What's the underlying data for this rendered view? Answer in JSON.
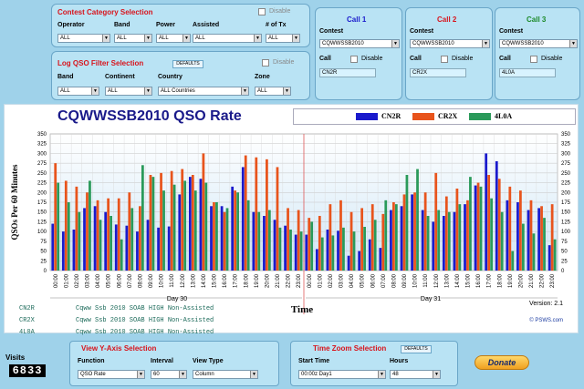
{
  "contest_category": {
    "title": "Contest Category Selection",
    "disable_label": "Disable",
    "labels": [
      "Operator",
      "Band",
      "Power",
      "Assisted",
      "# of Tx"
    ],
    "values": [
      "ALL",
      "ALL",
      "ALL",
      "ALL",
      "ALL"
    ]
  },
  "log_filter": {
    "title": "Log QSO Filter Selection",
    "defaults_label": "DEFAULTS",
    "disable_label": "Disable",
    "labels": [
      "Band",
      "Continent",
      "Country",
      "Zone"
    ],
    "values": [
      "ALL",
      "ALL",
      "ALL Countries",
      "ALL"
    ]
  },
  "calls": [
    {
      "title": "Call 1",
      "color": "#1a1acc",
      "contest_label": "Contest",
      "contest": "CQWWSSB2010",
      "call_label": "Call",
      "disable_label": "Disable",
      "call": "CN2R"
    },
    {
      "title": "Call 2",
      "color": "#d8141c",
      "contest_label": "Contest",
      "contest": "CQWWSSB2010",
      "call_label": "Call",
      "disable_label": "Disable",
      "call": "CR2X"
    },
    {
      "title": "Call 3",
      "color": "#1c8a2a",
      "contest_label": "Contest",
      "contest": "CQWWSSB2010",
      "call_label": "Call",
      "disable_label": "Disable",
      "call": "4L0A"
    }
  ],
  "chart_data": {
    "type": "bar",
    "title": "CQWWSSB2010  QSO Rate",
    "xlabel": "Time",
    "ylabel": "QSOs Per 60 Minutes",
    "ylim": [
      0,
      350
    ],
    "yticks": [
      0,
      25,
      50,
      75,
      100,
      125,
      150,
      175,
      200,
      225,
      250,
      275,
      300,
      325,
      350
    ],
    "grid": true,
    "legend_position": "top-right",
    "categories": [
      "00:00",
      "01:00",
      "02:00",
      "03:00",
      "04:00",
      "05:00",
      "06:00",
      "07:00",
      "08:00",
      "09:00",
      "10:00",
      "11:00",
      "12:00",
      "13:00",
      "14:00",
      "15:00",
      "16:00",
      "17:00",
      "18:00",
      "19:00",
      "20:00",
      "21:00",
      "22:00",
      "23:00",
      "00:00",
      "01:00",
      "02:00",
      "03:00",
      "04:00",
      "05:00",
      "06:00",
      "07:00",
      "08:00",
      "09:00",
      "10:00",
      "11:00",
      "12:00",
      "13:00",
      "14:00",
      "15:00",
      "16:00",
      "17:00",
      "18:00",
      "19:00",
      "20:00",
      "21:00",
      "22:00",
      "23:00"
    ],
    "day_labels": [
      "Day 30",
      "Day 31"
    ],
    "series": [
      {
        "name": "CN2R",
        "color": "#1a1acc",
        "values": [
          120,
          100,
          105,
          160,
          165,
          150,
          118,
          115,
          100,
          130,
          110,
          113,
          195,
          240,
          235,
          165,
          165,
          215,
          265,
          150,
          140,
          130,
          115,
          92,
          92,
          55,
          105,
          102,
          38,
          50,
          80,
          58,
          155,
          165,
          195,
          155,
          125,
          140,
          150,
          170,
          218,
          300,
          280,
          180,
          175,
          155,
          160,
          65
        ]
      },
      {
        "name": "CR2X",
        "color": "#e8541c",
        "values": [
          275,
          230,
          215,
          200,
          180,
          185,
          185,
          200,
          165,
          245,
          250,
          255,
          260,
          245,
          300,
          175,
          150,
          205,
          295,
          290,
          285,
          265,
          160,
          155,
          135,
          140,
          170,
          180,
          150,
          160,
          170,
          145,
          175,
          195,
          200,
          200,
          250,
          190,
          210,
          180,
          225,
          245,
          235,
          215,
          205,
          180,
          165,
          170
        ]
      },
      {
        "name": "4L0A",
        "color": "#2a9a5a",
        "values": [
          225,
          175,
          150,
          230,
          130,
          140,
          80,
          160,
          270,
          240,
          205,
          220,
          230,
          205,
          225,
          175,
          160,
          200,
          180,
          150,
          155,
          110,
          105,
          100,
          125,
          85,
          90,
          110,
          100,
          112,
          130,
          180,
          170,
          245,
          260,
          140,
          155,
          150,
          170,
          240,
          215,
          185,
          150,
          50,
          120,
          95,
          135,
          80
        ]
      }
    ]
  },
  "legend": [
    {
      "name": "CN2R",
      "color": "#1a1acc"
    },
    {
      "name": "CR2X",
      "color": "#e8541c"
    },
    {
      "name": "4L0A",
      "color": "#2a9a5a"
    }
  ],
  "version": "Version: 2.1",
  "copyright": "© PSWS.com",
  "callinfo": [
    {
      "call": "CN2R",
      "desc": "Cqww Ssb 2010 SOAB HIGH Non-Assisted"
    },
    {
      "call": "CR2X",
      "desc": "Cqww Ssb 2010 SOAB HIGH Non-Assisted"
    },
    {
      "call": "4L0A",
      "desc": "Cqww Ssb 2010 SOAB HIGH Non-Assisted"
    }
  ],
  "visits": {
    "label": "Visits",
    "count": "6833"
  },
  "view_y": {
    "title": "View Y-Axis Selection",
    "function_label": "Function",
    "function": "QSO Rate",
    "interval_label": "Interval",
    "interval": "60",
    "viewtype_label": "View Type",
    "viewtype": "Column"
  },
  "time_zoom": {
    "title": "Time Zoom Selection",
    "defaults_label": "DEFAULTS",
    "start_label": "Start Time",
    "start": "00:00z Day1",
    "hours_label": "Hours",
    "hours": "48"
  },
  "donate_label": "Donate"
}
